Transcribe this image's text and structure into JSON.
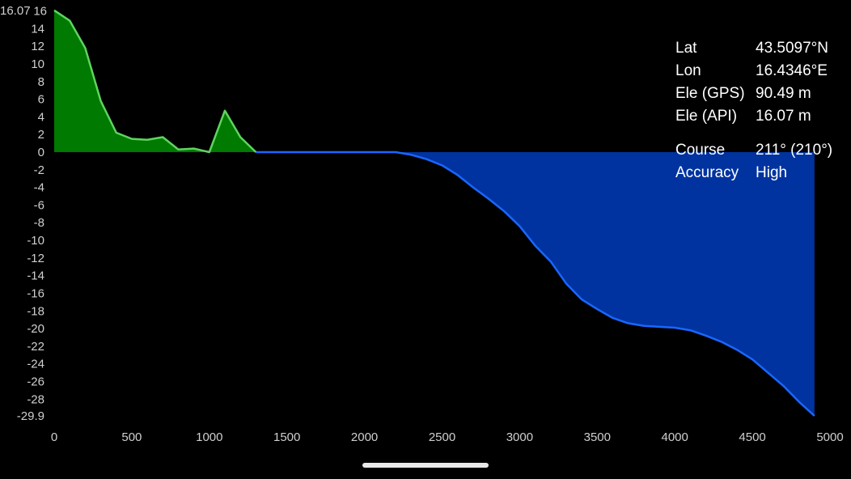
{
  "chart_data": {
    "type": "area",
    "xlim": [
      0,
      5000
    ],
    "ylim": [
      -29.9,
      16.07
    ],
    "x_ticks": [
      "0",
      "500",
      "1000",
      "1500",
      "2000",
      "2500",
      "3000",
      "3500",
      "4000",
      "4500",
      "5000"
    ],
    "y_ticks": [
      "16.07",
      "16",
      "14",
      "12",
      "10",
      "8",
      "6",
      "4",
      "2",
      "0",
      "-2",
      "-4",
      "-6",
      "-8",
      "-10",
      "-12",
      "-14",
      "-16",
      "-18",
      "-20",
      "-22",
      "-24",
      "-26",
      "-28",
      "-29.9"
    ],
    "grid": false,
    "x": [
      0,
      100,
      200,
      300,
      400,
      500,
      600,
      700,
      800,
      900,
      1000,
      1100,
      1200,
      1300,
      1400,
      1500,
      1600,
      1700,
      1800,
      1900,
      2000,
      2100,
      2200,
      2300,
      2400,
      2500,
      2600,
      2700,
      2800,
      2900,
      3000,
      3100,
      3200,
      3300,
      3400,
      3500,
      3600,
      3700,
      3800,
      3900,
      4000,
      4100,
      4200,
      4300,
      4400,
      4500,
      4600,
      4700,
      4800,
      4900
    ],
    "y": [
      16.07,
      14.9,
      11.8,
      5.8,
      2.2,
      1.5,
      1.4,
      1.7,
      0.3,
      0.4,
      0.0,
      4.7,
      1.7,
      0,
      0,
      0,
      0,
      0,
      0,
      0,
      0,
      0,
      0,
      -0.3,
      -0.8,
      -1.5,
      -2.6,
      -4.0,
      -5.3,
      -6.7,
      -8.4,
      -10.6,
      -12.4,
      -14.9,
      -16.7,
      -17.8,
      -18.8,
      -19.4,
      -19.7,
      -19.8,
      -19.9,
      -20.2,
      -20.8,
      -21.5,
      -22.4,
      -23.5,
      -25.0,
      -26.5,
      -28.3,
      -29.9
    ],
    "colors": {
      "positive_fill": "#007a00",
      "positive_line": "#5fd35f",
      "negative_fill": "#0033a0",
      "negative_line": "#1a66ff"
    }
  },
  "info": {
    "rows": [
      {
        "label": "Lat",
        "value": "43.5097°N"
      },
      {
        "label": "Lon",
        "value": "16.4346°E"
      },
      {
        "label": "Ele (GPS)",
        "value": "90.49 m"
      },
      {
        "label": "Ele (API)",
        "value": "16.07 m"
      },
      {
        "label": "Course",
        "value": "211° (210°)"
      },
      {
        "label": "Accuracy",
        "value": "High"
      }
    ]
  }
}
